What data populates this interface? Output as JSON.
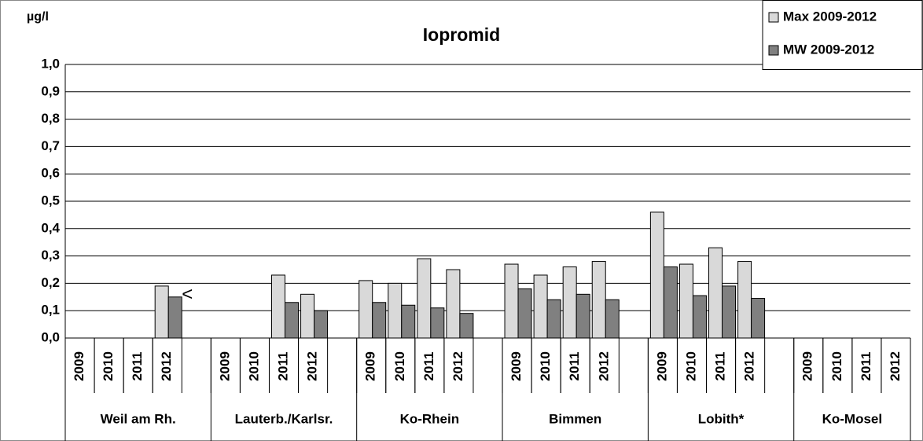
{
  "chart_data": {
    "type": "bar",
    "title": "Iopromid",
    "y_label": "µg/l",
    "groups": [
      "Weil am Rh.",
      "Lauterb./Karlsr.",
      "Ko-Rhein",
      "Bimmen",
      "Lobith*",
      "Ko-Mosel"
    ],
    "categories": [
      "2009",
      "2010",
      "2011",
      "2012",
      "2009",
      "2010",
      "2011",
      "2012",
      "2009",
      "2010",
      "2011",
      "2012",
      "2009",
      "2010",
      "2011",
      "2012",
      "2009",
      "2010",
      "2011",
      "2012",
      "2009",
      "2010",
      "2011",
      "2012"
    ],
    "series": [
      {
        "name": "Max 2009-2012",
        "color": "#d9d9d9",
        "values": [
          null,
          null,
          null,
          0.19,
          null,
          null,
          0.23,
          0.16,
          0.21,
          0.2,
          0.29,
          0.25,
          0.27,
          0.23,
          0.26,
          0.28,
          0.46,
          0.27,
          0.33,
          0.28,
          null,
          null,
          null,
          null
        ]
      },
      {
        "name": "MW 2009-2012",
        "color": "#808080",
        "values": [
          null,
          null,
          null,
          0.15,
          null,
          null,
          0.13,
          0.1,
          0.13,
          0.12,
          0.11,
          0.09,
          0.18,
          0.14,
          0.16,
          0.14,
          0.26,
          0.155,
          0.19,
          0.145,
          null,
          null,
          null,
          null
        ]
      }
    ],
    "annotations": [
      {
        "text": "<",
        "series": 1,
        "index": 3
      }
    ],
    "ylim": [
      0,
      1
    ],
    "yticks": [
      {
        "value": 0,
        "label": "0,0"
      },
      {
        "value": 0.1,
        "label": "0,1"
      },
      {
        "value": 0.2,
        "label": "0,2"
      },
      {
        "value": 0.3,
        "label": "0,3"
      },
      {
        "value": 0.4,
        "label": "0,4"
      },
      {
        "value": 0.5,
        "label": "0,5"
      },
      {
        "value": 0.6,
        "label": "0,6"
      },
      {
        "value": 0.7,
        "label": "0,7"
      },
      {
        "value": 0.8,
        "label": "0,8"
      },
      {
        "value": 0.9,
        "label": "0,9"
      },
      {
        "value": 1,
        "label": "1,0"
      }
    ],
    "grid": true,
    "legend": "top-right"
  }
}
